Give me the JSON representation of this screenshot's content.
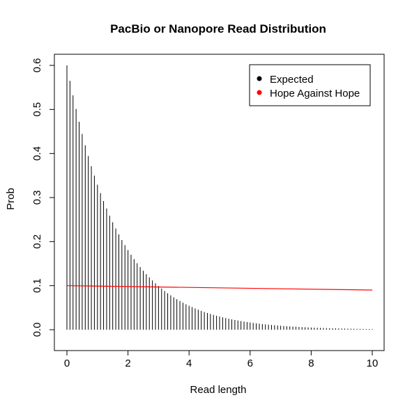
{
  "chart_data": {
    "type": "line",
    "title": "PacBio or Nanopore Read Distribution",
    "xlabel": "Read length",
    "ylabel": "Prob",
    "xlim": [
      0,
      10
    ],
    "ylim": [
      0,
      0.6
    ],
    "xticks": [
      "0",
      "2",
      "4",
      "6",
      "8",
      "10"
    ],
    "yticks": [
      "0.0",
      "0.1",
      "0.2",
      "0.3",
      "0.4",
      "0.5",
      "0.6"
    ],
    "grid": false,
    "legend_position": "top-right",
    "series": [
      {
        "name": "Expected",
        "style": "histogram-spikes",
        "color": "#000000",
        "description": "density of exponential distribution with rate 0.6, sampled every 0.1",
        "rate": 0.6,
        "x_start": 0,
        "x_end": 10,
        "x_step": 0.1
      },
      {
        "name": "Hope Against Hope",
        "style": "line",
        "color": "#ff0000",
        "x": [
          0,
          10
        ],
        "values": [
          0.1,
          0.09
        ]
      }
    ]
  }
}
